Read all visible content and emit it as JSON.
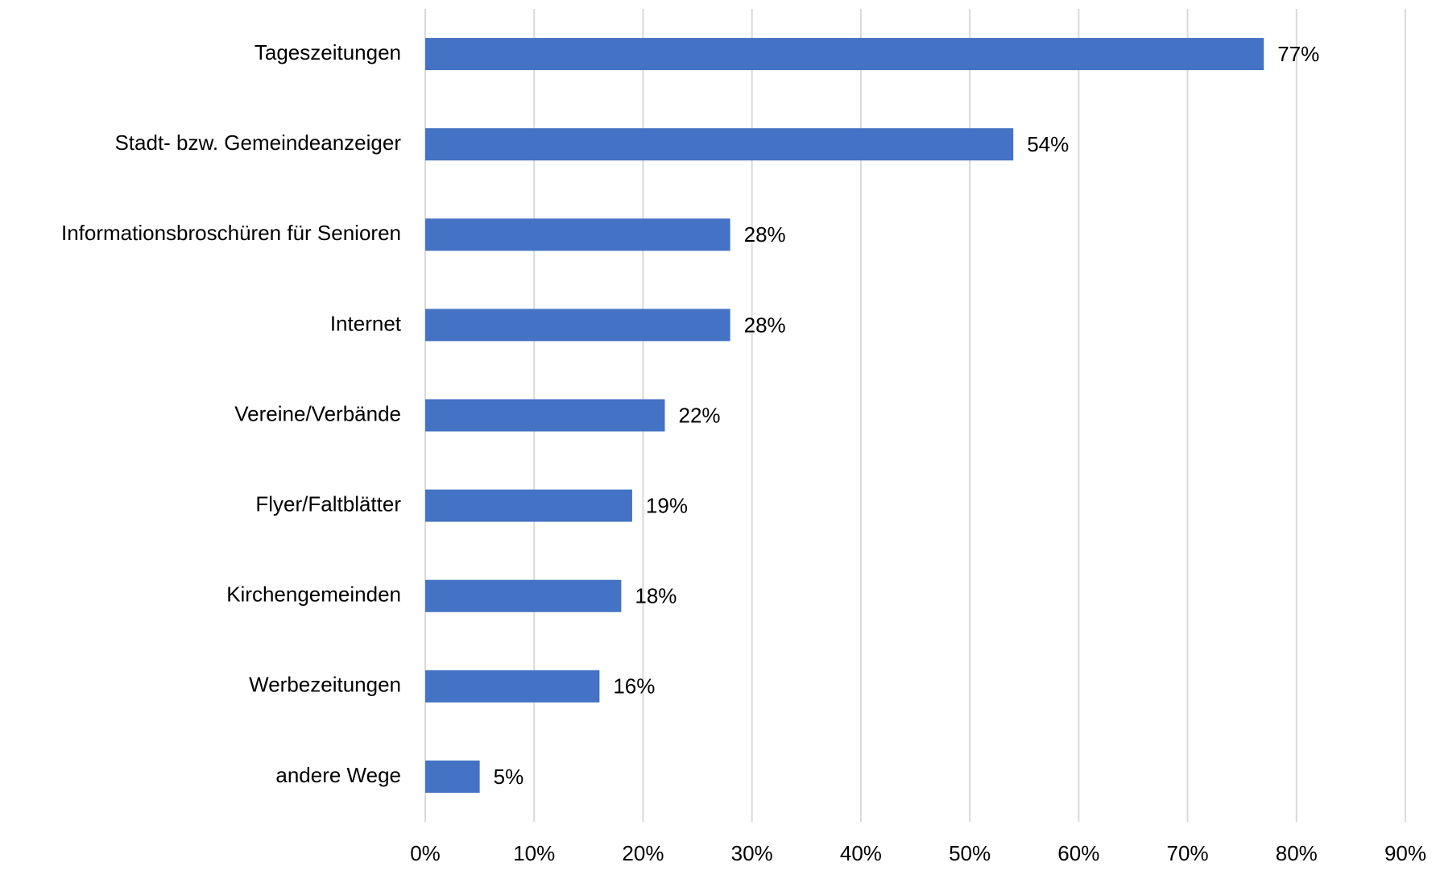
{
  "chart_data": {
    "type": "bar",
    "orientation": "horizontal",
    "categories": [
      "Tageszeitungen",
      "Stadt- bzw. Gemeindeanzeiger",
      "Informationsbroschüren für Senioren",
      "Internet",
      "Vereine/Verbände",
      "Flyer/Faltblätter",
      "Kirchengemeinden",
      "Werbezeitungen",
      "andere Wege"
    ],
    "values": [
      77,
      54,
      28,
      28,
      22,
      19,
      18,
      16,
      5
    ],
    "value_labels": [
      "77%",
      "54%",
      "28%",
      "28%",
      "22%",
      "19%",
      "18%",
      "16%",
      "5%"
    ],
    "color": "#4472c4",
    "xlim": [
      0,
      90
    ],
    "xticks": [
      {
        "value": 0,
        "label": "0%"
      },
      {
        "value": 10,
        "label": "10%"
      },
      {
        "value": 20,
        "label": "20%"
      },
      {
        "value": 30,
        "label": "30%"
      },
      {
        "value": 40,
        "label": "40%"
      },
      {
        "value": 50,
        "label": "50%"
      },
      {
        "value": 60,
        "label": "60%"
      },
      {
        "value": 70,
        "label": "70%"
      },
      {
        "value": 80,
        "label": "80%"
      },
      {
        "value": 90,
        "label": "90%"
      }
    ],
    "grid": true
  }
}
